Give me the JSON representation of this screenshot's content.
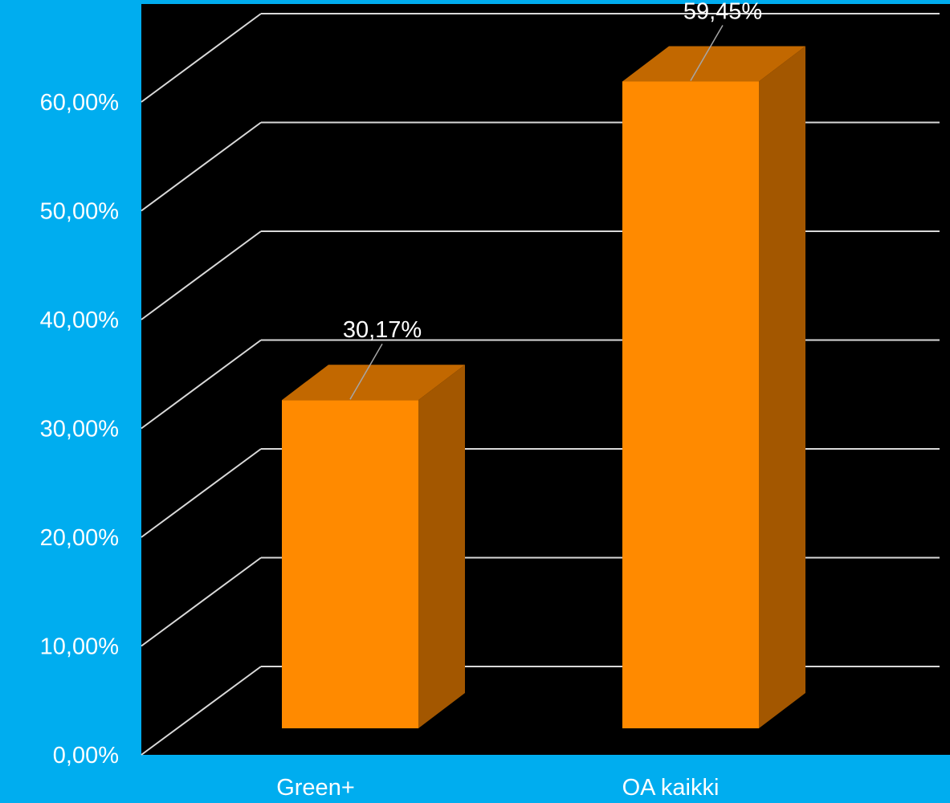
{
  "chart_data": {
    "type": "bar",
    "style": "3d-column",
    "categories": [
      "Green+",
      "OA kaikki"
    ],
    "series": [
      {
        "values": [
          30.17,
          59.45
        ],
        "data_labels": [
          "30,17%",
          "59,45%"
        ]
      }
    ],
    "y_ticks": [
      0,
      10,
      20,
      30,
      40,
      50,
      60
    ],
    "y_tick_labels": [
      "0,00%",
      "10,00%",
      "20,00%",
      "30,00%",
      "40,00%",
      "50,00%",
      "60,00%"
    ],
    "ylim": [
      0,
      60
    ],
    "grid": true,
    "legend": "none",
    "title": "",
    "xlabel": "",
    "ylabel": "",
    "colors": {
      "background": "#00ADEF",
      "plot_area": "#000000",
      "gridline": "#D9D9D9",
      "bar_front": "#FF8A00",
      "bar_top": "#C26800",
      "bar_side": "#A35700",
      "text": "#FFFFFF"
    }
  }
}
